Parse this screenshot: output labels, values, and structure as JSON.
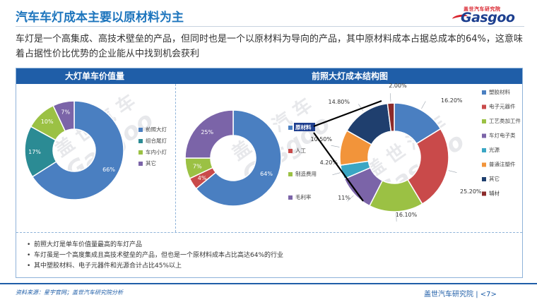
{
  "title": "汽车车灯成本主要以原材料为主",
  "logo": {
    "top_text": "盖世汽车研究院",
    "main_text": "Gasgoo"
  },
  "lead": "车灯是一个高集成、高技术壁垒的产品，但同时也是一个以原材料为导向的产品，其中原材料成本占据总成本的64%，这意味着占据性价比优势的企业能从中找到机会获利",
  "panel": {
    "left_header": "大灯单车价值量",
    "right_header": "前照大灯成本结构图"
  },
  "watermark": {
    "chinese": "盖 世 汽 车",
    "latin": "Gasgoo"
  },
  "chart_data": [
    {
      "type": "pie",
      "title": "大灯单车价值量",
      "categories": [
        "前照大灯",
        "组合尾灯",
        "车内小灯",
        "其它"
      ],
      "values": [
        66,
        17,
        10,
        7
      ],
      "labels": [
        "66%",
        "17%",
        "10%",
        "7%"
      ],
      "colors": [
        "#4a7fc1",
        "#2b8b94",
        "#9bc144",
        "#7b64a8"
      ],
      "legend": "right"
    },
    {
      "type": "pie",
      "categories": [
        "原材料",
        "人工",
        "制造费用",
        "毛利率"
      ],
      "values": [
        64,
        4,
        7,
        25
      ],
      "labels": [
        "64%",
        "4%",
        "7%",
        "25%"
      ],
      "colors": [
        "#4a7fc1",
        "#c94a4a",
        "#9bc144",
        "#7b64a8"
      ],
      "legend": "right",
      "highlight": "原材料"
    },
    {
      "type": "pie",
      "title": "前照大灯成本结构图",
      "categories": [
        "塑胶材料",
        "电子元器件",
        "工艺类加工件",
        "车灯电子类",
        "光源",
        "普通注塑件",
        "其它",
        "辅材"
      ],
      "values": [
        16.2,
        25.2,
        16.1,
        11,
        4.2,
        10.5,
        14.8,
        2.0
      ],
      "labels": [
        "16.20%",
        "25.20%",
        "16.10%",
        "11%",
        "4.20%",
        "10.50%",
        "14.80%",
        "2.00%"
      ],
      "colors": [
        "#4a7fc1",
        "#c94a4a",
        "#9bc144",
        "#7b64a8",
        "#3aa6c4",
        "#f2943a",
        "#1f3f6e",
        "#8b2a2a"
      ],
      "legend": "right"
    }
  ],
  "bullets": [
    "前照大灯是单车价值量最高的车灯产品",
    "车灯虽是一个高度集成且高技术壁垒的产品，但也是一个原材料成本占比高达64%的行业",
    "其中塑胶材料、电子元器件和光源合计占比45%以上"
  ],
  "footer": {
    "source": "资料来源：星宇官网；盖世汽车研究院分析",
    "org": "盖世汽车研究院",
    "page": "<7>"
  }
}
